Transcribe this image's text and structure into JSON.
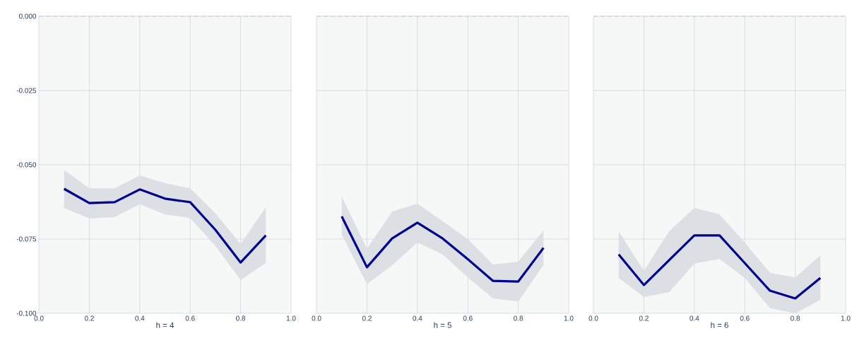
{
  "chart_data": [
    {
      "type": "line",
      "xlabel": "h = 4",
      "x": [
        0.1,
        0.2,
        0.3,
        0.4,
        0.5,
        0.6,
        0.7,
        0.8,
        0.9
      ],
      "series": [
        {
          "color": "#00008b",
          "values": [
            -0.0581,
            -0.0629,
            -0.0626,
            -0.0583,
            -0.0614,
            -0.0626,
            -0.0719,
            -0.0829,
            -0.0738
          ],
          "upper": [
            -0.0517,
            -0.0579,
            -0.0579,
            -0.0536,
            -0.0562,
            -0.0579,
            -0.0664,
            -0.0767,
            -0.0643
          ],
          "lower": [
            -0.0645,
            -0.0681,
            -0.0676,
            -0.0633,
            -0.0667,
            -0.0679,
            -0.0774,
            -0.0888,
            -0.0831
          ]
        }
      ],
      "xlim": [
        0,
        1
      ],
      "ylim": [
        -0.1,
        0
      ],
      "xticks": [
        {
          "value": 0,
          "label": "0.0"
        },
        {
          "value": 0.2,
          "label": "0.2"
        },
        {
          "value": 0.4,
          "label": "0.4"
        },
        {
          "value": 0.6,
          "label": "0.6"
        },
        {
          "value": 0.8,
          "label": "0.8"
        },
        {
          "value": 1,
          "label": "1.0"
        }
      ],
      "yticks": [
        {
          "value": -0.1,
          "label": "-0.100"
        },
        {
          "value": -0.075,
          "label": "-0.075"
        },
        {
          "value": -0.05,
          "label": "-0.050"
        },
        {
          "value": -0.025,
          "label": "-0.025"
        },
        {
          "value": 0,
          "label": "0.000"
        }
      ],
      "ref_lines": [
        {
          "axis": "y",
          "value": 0,
          "line_style": "dashed",
          "color": "#c8ccd4"
        }
      ],
      "grid": true
    },
    {
      "type": "line",
      "xlabel": "h = 5",
      "x": [
        0.1,
        0.2,
        0.3,
        0.4,
        0.5,
        0.6,
        0.7,
        0.8,
        0.9
      ],
      "series": [
        {
          "color": "#00008b",
          "values": [
            -0.0674,
            -0.0845,
            -0.0748,
            -0.0695,
            -0.0748,
            -0.0818,
            -0.0891,
            -0.0893,
            -0.078
          ],
          "upper": [
            -0.0607,
            -0.0783,
            -0.0657,
            -0.0631,
            -0.069,
            -0.075,
            -0.0836,
            -0.0826,
            -0.0721
          ],
          "lower": [
            -0.0735,
            -0.0902,
            -0.0838,
            -0.0762,
            -0.0802,
            -0.0879,
            -0.095,
            -0.096,
            -0.0838
          ]
        }
      ],
      "xlim": [
        0,
        1
      ],
      "ylim": [
        -0.1,
        0
      ],
      "xticks": [
        {
          "value": 0,
          "label": "0.0"
        },
        {
          "value": 0.2,
          "label": "0.2"
        },
        {
          "value": 0.4,
          "label": "0.4"
        },
        {
          "value": 0.6,
          "label": "0.6"
        },
        {
          "value": 0.8,
          "label": "0.8"
        },
        {
          "value": 1,
          "label": "1.0"
        }
      ],
      "yticks": [
        {
          "value": -0.1,
          "label": null
        },
        {
          "value": -0.075,
          "label": null
        },
        {
          "value": -0.05,
          "label": null
        },
        {
          "value": -0.025,
          "label": null
        },
        {
          "value": 0,
          "label": null
        }
      ],
      "ref_lines": [
        {
          "axis": "y",
          "value": 0,
          "line_style": "dashed",
          "color": "#c8ccd4"
        }
      ],
      "grid": true,
      "tick_labels": "x"
    },
    {
      "type": "line",
      "xlabel": "h = 6",
      "x": [
        0.1,
        0.2,
        0.3,
        0.4,
        0.5,
        0.6,
        0.7,
        0.8,
        0.9
      ],
      "series": [
        {
          "color": "#00008b",
          "values": [
            -0.0802,
            -0.0905,
            -0.0821,
            -0.0738,
            -0.0738,
            -0.0831,
            -0.0924,
            -0.095,
            -0.0881
          ],
          "upper": [
            -0.0724,
            -0.0857,
            -0.0724,
            -0.0645,
            -0.0667,
            -0.0762,
            -0.0864,
            -0.0879,
            -0.0805
          ],
          "lower": [
            -0.0881,
            -0.0945,
            -0.0929,
            -0.0833,
            -0.0817,
            -0.0881,
            -0.0983,
            -0.1,
            -0.0955
          ]
        }
      ],
      "xlim": [
        0,
        1
      ],
      "ylim": [
        -0.1,
        0
      ],
      "xticks": [
        {
          "value": 0,
          "label": "0.0"
        },
        {
          "value": 0.2,
          "label": "0.2"
        },
        {
          "value": 0.4,
          "label": "0.4"
        },
        {
          "value": 0.6,
          "label": "0.6"
        },
        {
          "value": 0.8,
          "label": "0.8"
        },
        {
          "value": 1,
          "label": "1.0"
        }
      ],
      "yticks": [
        {
          "value": -0.1,
          "label": null
        },
        {
          "value": -0.075,
          "label": null
        },
        {
          "value": -0.05,
          "label": null
        },
        {
          "value": -0.025,
          "label": null
        },
        {
          "value": 0,
          "label": null
        }
      ],
      "ref_lines": [
        {
          "axis": "y",
          "value": 0,
          "line_style": "dashed",
          "color": "#c8ccd4"
        }
      ],
      "grid": true,
      "tick_labels": "x"
    }
  ]
}
